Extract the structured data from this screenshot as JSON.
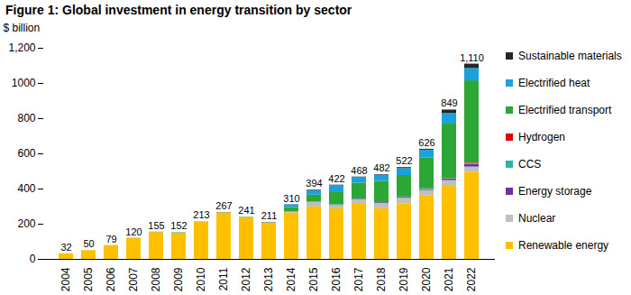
{
  "chart_data": {
    "type": "bar",
    "stacked": true,
    "title": "Figure 1: Global investment in energy transition by sector",
    "ylabel": "$ billion",
    "categories": [
      "2004",
      "2005",
      "2006",
      "2007",
      "2008",
      "2009",
      "2010",
      "2011",
      "2012",
      "2013",
      "2014",
      "2015",
      "2016",
      "2017",
      "2018",
      "2019",
      "2020",
      "2021",
      "2022"
    ],
    "series": [
      {
        "name": "Renewable energy",
        "color": "#FFC000",
        "values": [
          32,
          50,
          79,
          118,
          153,
          149,
          211,
          264,
          239,
          207,
          264,
          298,
          287,
          313,
          288,
          316,
          360,
          415,
          495
        ]
      },
      {
        "name": "Nuclear",
        "color": "#BFBFBF",
        "values": [
          0,
          0,
          0,
          0,
          0,
          0,
          0,
          0,
          0,
          0,
          5,
          26,
          20,
          26,
          30,
          32,
          32,
          33,
          30
        ]
      },
      {
        "name": "Energy storage",
        "color": "#7030A0",
        "values": [
          0,
          0,
          0,
          0,
          0,
          0,
          0,
          1,
          0,
          2,
          2,
          2,
          2,
          3,
          4,
          5,
          5,
          8,
          15
        ]
      },
      {
        "name": "CCS",
        "color": "#2AB7A0",
        "values": [
          0,
          0,
          0,
          2,
          2,
          3,
          2,
          2,
          2,
          2,
          1,
          1,
          1,
          1,
          1,
          1,
          3,
          2,
          6
        ]
      },
      {
        "name": "Hydrogen",
        "color": "#E00000",
        "values": [
          0,
          0,
          0,
          0,
          0,
          0,
          0,
          0,
          0,
          0,
          0,
          0,
          0,
          0,
          0,
          1,
          1,
          1,
          3
        ]
      },
      {
        "name": "Electrified transport",
        "color": "#2CA635",
        "values": [
          0,
          0,
          0,
          0,
          0,
          0,
          0,
          0,
          0,
          0,
          22,
          38,
          74,
          90,
          120,
          122,
          175,
          310,
          466
        ]
      },
      {
        "name": "Electrified heat",
        "color": "#1BA1DB",
        "values": [
          0,
          0,
          0,
          0,
          0,
          0,
          0,
          0,
          0,
          0,
          14,
          26,
          35,
          32,
          36,
          40,
          45,
          60,
          70
        ]
      },
      {
        "name": "Sustainable materials",
        "color": "#262626",
        "values": [
          0,
          0,
          0,
          0,
          0,
          0,
          0,
          0,
          0,
          0,
          2,
          3,
          3,
          3,
          3,
          5,
          5,
          20,
          25
        ]
      }
    ],
    "totals": {
      "values": [
        32,
        50,
        79,
        120,
        155,
        152,
        213,
        267,
        241,
        211,
        310,
        394,
        422,
        468,
        482,
        522,
        626,
        849,
        1110
      ],
      "value_labels": [
        "32",
        "50",
        "79",
        "120",
        "155",
        "152",
        "213",
        "267",
        "241",
        "211",
        "310",
        "394",
        "422",
        "468",
        "482",
        "522",
        "626",
        "849",
        "1,110"
      ]
    },
    "ylim": [
      0,
      1200
    ],
    "yticks": [
      0,
      200,
      400,
      600,
      800,
      1000,
      {
        "value": 1200,
        "label": "1,200"
      }
    ],
    "grid": false,
    "legend": "right"
  }
}
